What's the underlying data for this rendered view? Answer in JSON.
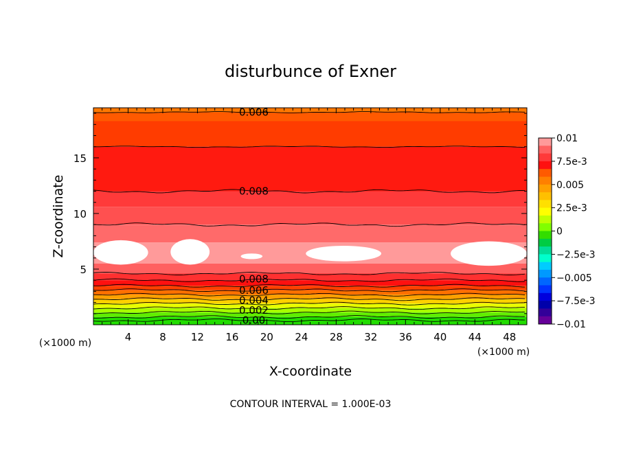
{
  "chart_data": {
    "type": "heatmap",
    "title": "disturbunce of Exner",
    "xlabel": "X-coordinate",
    "ylabel": "Z-coordinate",
    "x_unit": "(×1000 m)",
    "x_unit_right": "(×1000 m)",
    "xlim": [
      0,
      50
    ],
    "ylim": [
      0,
      19.5
    ],
    "x_ticks": [
      4,
      8,
      12,
      16,
      20,
      24,
      28,
      32,
      36,
      40,
      44,
      48
    ],
    "y_ticks": [
      5,
      10,
      15
    ],
    "footer": "CONTOUR INTERVAL = 1.000E-03",
    "colorbar": {
      "labels": [
        "0.01",
        "7.5e-3",
        "0.005",
        "2.5e-3",
        "0",
        "−2.5e-3",
        "−0.005",
        "−7.5e-3",
        "−0.01"
      ],
      "colors": [
        "#ff9a9a",
        "#ff6262",
        "#ff3a3a",
        "#ff1010",
        "#ff5a00",
        "#ff8000",
        "#ffa000",
        "#ffc000",
        "#ffe000",
        "#ffff00",
        "#c0ff00",
        "#80ff00",
        "#33dd00",
        "#00cc44",
        "#00dd99",
        "#00ffcc",
        "#00ccff",
        "#0099ff",
        "#0066ff",
        "#0033ff",
        "#0000dd",
        "#0000aa",
        "#330099",
        "#660099"
      ]
    },
    "contour_labels": [
      {
        "text": "0.006",
        "x": 18.5,
        "z": 19.1
      },
      {
        "text": "0.008",
        "x": 18.5,
        "z": 12.0
      },
      {
        "text": "0.008",
        "x": 18.5,
        "z": 4.1
      },
      {
        "text": "0.006",
        "x": 18.5,
        "z": 3.1
      },
      {
        "text": "0.004",
        "x": 18.5,
        "z": 2.2
      },
      {
        "text": "0.002",
        "x": 18.5,
        "z": 1.3
      },
      {
        "text": "0.00",
        "x": 18.5,
        "z": 0.4
      }
    ],
    "bands": [
      {
        "z0": 19.1,
        "z1": 19.5,
        "color": "#ff7800"
      },
      {
        "z0": 18.3,
        "z1": 19.1,
        "color": "#ff5a00"
      },
      {
        "z0": 16.0,
        "z1": 18.3,
        "color": "#ff3c00"
      },
      {
        "z0": 12.0,
        "z1": 16.0,
        "color": "#ff1a10"
      },
      {
        "z0": 10.6,
        "z1": 12.0,
        "color": "#ff3a3a"
      },
      {
        "z0": 9.0,
        "z1": 10.6,
        "color": "#ff5050"
      },
      {
        "z0": 7.4,
        "z1": 9.0,
        "color": "#ff6a6a"
      },
      {
        "z0": 5.5,
        "z1": 7.4,
        "color": "#ff9a9a"
      },
      {
        "z0": 4.6,
        "z1": 5.5,
        "color": "#ff6060"
      },
      {
        "z0": 4.0,
        "z1": 4.6,
        "color": "#ff3030"
      },
      {
        "z0": 3.5,
        "z1": 4.0,
        "color": "#ff1010"
      },
      {
        "z0": 3.1,
        "z1": 3.5,
        "color": "#ff4000"
      },
      {
        "z0": 2.7,
        "z1": 3.1,
        "color": "#ff7000"
      },
      {
        "z0": 2.3,
        "z1": 2.7,
        "color": "#ffa000"
      },
      {
        "z0": 1.9,
        "z1": 2.3,
        "color": "#ffd000"
      },
      {
        "z0": 1.5,
        "z1": 1.9,
        "color": "#e8ff00"
      },
      {
        "z0": 1.1,
        "z1": 1.5,
        "color": "#a8ff00"
      },
      {
        "z0": 0.7,
        "z1": 1.1,
        "color": "#60ee00"
      },
      {
        "z0": 0.0,
        "z1": 0.7,
        "color": "#22dd00"
      }
    ],
    "contour_levels_z": [
      19.1,
      16.0,
      12.0,
      9.0,
      4.6,
      4.0,
      3.5,
      3.1,
      2.7,
      2.3,
      1.9,
      1.5,
      1.1,
      0.7,
      0.4
    ],
    "blobs": [
      {
        "x0": 0.0,
        "x1": 6.3,
        "z0": 5.4,
        "z1": 7.6
      },
      {
        "x0": 8.9,
        "x1": 13.4,
        "z0": 5.4,
        "z1": 7.7
      },
      {
        "x0": 17.0,
        "x1": 19.5,
        "z0": 5.9,
        "z1": 6.4
      },
      {
        "x0": 24.5,
        "x1": 33.2,
        "z0": 5.7,
        "z1": 7.1
      },
      {
        "x0": 41.2,
        "x1": 50.0,
        "z0": 5.3,
        "z1": 7.5
      }
    ]
  }
}
